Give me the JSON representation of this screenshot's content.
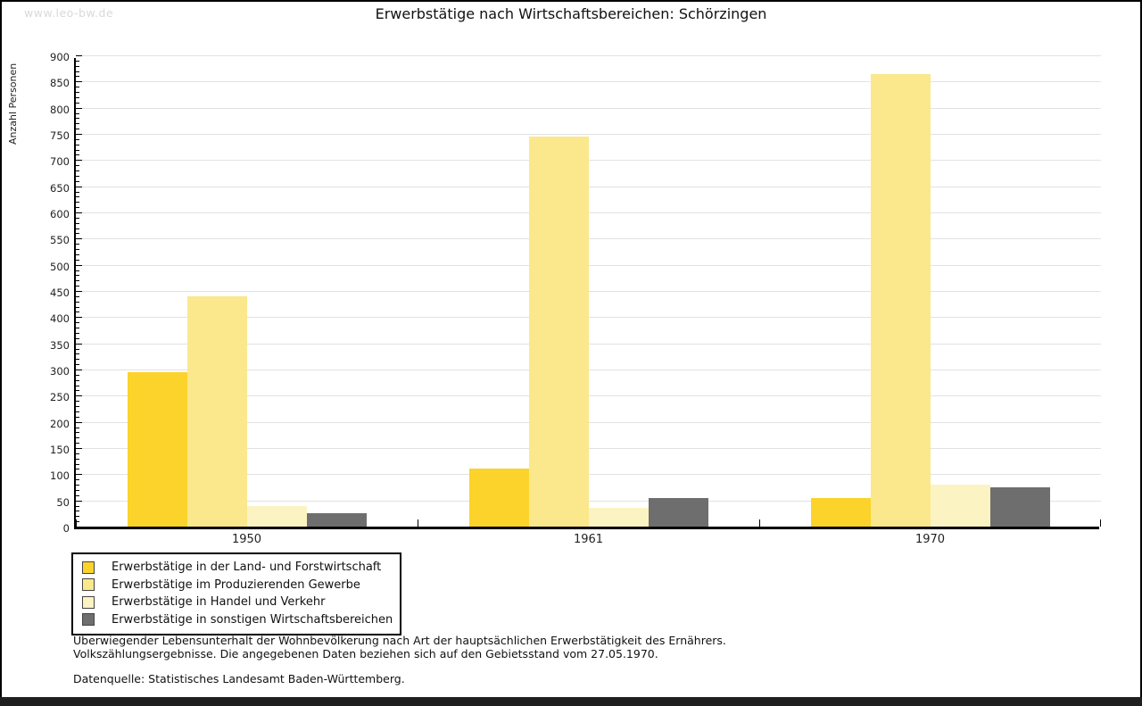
{
  "watermark": "www.leo-bw.de",
  "title": "Erwerbstätige nach Wirtschaftsbereichen: Schörzingen",
  "chart_data": {
    "type": "bar",
    "title": "Erwerbstätige nach Wirtschaftsbereichen: Schörzingen",
    "xlabel": "",
    "ylabel": "Anzahl Personen",
    "ylim": [
      0,
      900
    ],
    "ytick_step": 50,
    "minor_tick_step": 10,
    "grid": true,
    "legend_position": "bottom-left",
    "categories": [
      "1950",
      "1961",
      "1970"
    ],
    "series": [
      {
        "name": "Erwerbstätige in der Land- und Forstwirtschaft",
        "color": "#fbd32b",
        "values": [
          295,
          110,
          55
        ]
      },
      {
        "name": "Erwerbstätige im Produzierenden Gewerbe",
        "color": "#fbe88c",
        "values": [
          440,
          745,
          865
        ]
      },
      {
        "name": "Erwerbstätige in Handel und Verkehr",
        "color": "#fbf3c2",
        "values": [
          40,
          35,
          80
        ]
      },
      {
        "name": "Erwerbstätige in sonstigen Wirtschaftsbereichen",
        "color": "#6e6e6e",
        "values": [
          25,
          55,
          75
        ]
      }
    ]
  },
  "footnotes": {
    "line1": "Überwiegender Lebensunterhalt der Wohnbevölkerung nach Art der hauptsächlichen Erwerbstätigkeit des Ernährers.",
    "line2": "Volkszählungsergebnisse. Die angegebenen Daten beziehen sich auf den Gebietsstand vom 27.05.1970.",
    "source": "Datenquelle: Statistisches Landesamt Baden-Württemberg."
  },
  "colors": {
    "gridline": "#e2e2e2",
    "axis": "#000000",
    "watermark": "#d9d9d9",
    "bottom_strip": "#1f1f1f"
  }
}
